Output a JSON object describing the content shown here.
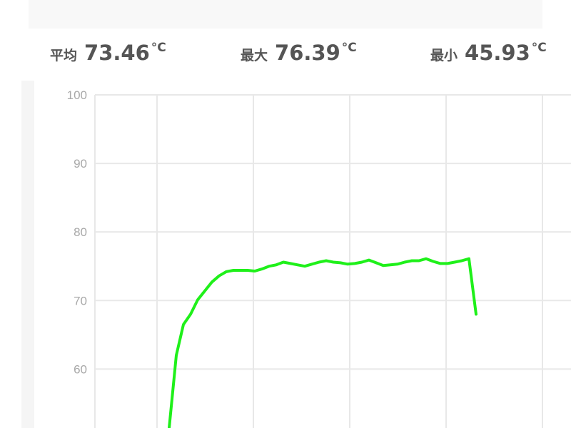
{
  "stats": [
    {
      "label": "平均",
      "value": "73.46",
      "unit": "°C"
    },
    {
      "label": "最大",
      "value": "76.39",
      "unit": "°C"
    },
    {
      "label": "最小",
      "value": "45.93",
      "unit": "°C"
    }
  ],
  "chart_data": {
    "type": "line",
    "ylim": [
      51.4,
      100
    ],
    "yticks": [
      60,
      70,
      80,
      90,
      100
    ],
    "grid": true,
    "series": [
      {
        "color": "#1ff01a",
        "values": [
          51.4,
          62,
          66.5,
          68.0,
          70.1,
          71.4,
          72.7,
          73.6,
          74.2,
          74.4,
          74.4,
          74.4,
          74.3,
          74.6,
          75.0,
          75.2,
          75.6,
          75.4,
          75.2,
          75.0,
          75.3,
          75.6,
          75.8,
          75.6,
          75.5,
          75.3,
          75.4,
          75.6,
          75.9,
          75.5,
          75.1,
          75.2,
          75.3,
          75.6,
          75.8,
          75.8,
          76.1,
          75.7,
          75.4,
          75.4,
          75.6,
          75.8,
          76.1,
          68.0
        ]
      }
    ]
  }
}
